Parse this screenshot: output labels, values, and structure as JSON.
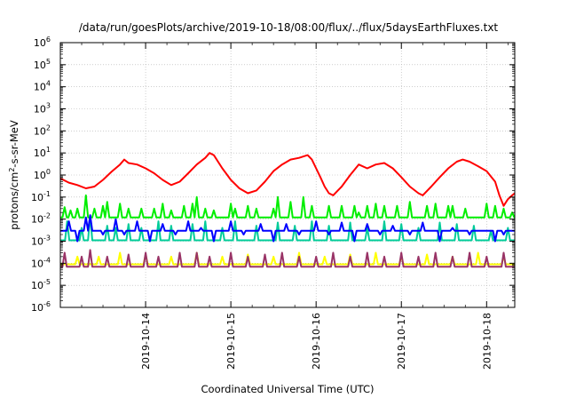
{
  "chart_data": {
    "type": "line",
    "title": "/data/run/goesPlots/archive/2019-10-18/08:00/flux/../flux/5daysEarthFluxes.txt",
    "xlabel": "Coordinated Universal Time (UTC)",
    "ylabel": "protons/cm²-s-sr-MeV",
    "x_tick_labels": [
      "2019-10-14",
      "2019-10-15",
      "2019-10-16",
      "2019-10-17",
      "2019-10-18"
    ],
    "x_tick_days": [
      1,
      2,
      3,
      4,
      5
    ],
    "x_range_days": [
      0,
      5.33
    ],
    "y_scale": "log",
    "ylim": [
      1e-06,
      1000000.0
    ],
    "y_tick_exponents": [
      -6,
      -5,
      -4,
      -3,
      -2,
      -1,
      0,
      1,
      2,
      3,
      4,
      5,
      6
    ],
    "grid": true,
    "legend": "none",
    "series": [
      {
        "color": "#ff0000",
        "points": [
          [
            0,
            0.7
          ],
          [
            0.1,
            0.45
          ],
          [
            0.2,
            0.35
          ],
          [
            0.3,
            0.25
          ],
          [
            0.4,
            0.3
          ],
          [
            0.5,
            0.6
          ],
          [
            0.6,
            1.4
          ],
          [
            0.7,
            3.0
          ],
          [
            0.75,
            5.0
          ],
          [
            0.8,
            3.5
          ],
          [
            0.9,
            3.0
          ],
          [
            1.0,
            2.0
          ],
          [
            1.1,
            1.2
          ],
          [
            1.2,
            0.6
          ],
          [
            1.3,
            0.35
          ],
          [
            1.4,
            0.5
          ],
          [
            1.5,
            1.2
          ],
          [
            1.6,
            3.0
          ],
          [
            1.7,
            6.0
          ],
          [
            1.75,
            10.0
          ],
          [
            1.8,
            8.0
          ],
          [
            1.9,
            2.0
          ],
          [
            2.0,
            0.6
          ],
          [
            2.1,
            0.25
          ],
          [
            2.2,
            0.15
          ],
          [
            2.3,
            0.2
          ],
          [
            2.4,
            0.5
          ],
          [
            2.5,
            1.5
          ],
          [
            2.6,
            3.0
          ],
          [
            2.7,
            5.0
          ],
          [
            2.8,
            6.0
          ],
          [
            2.9,
            8.0
          ],
          [
            2.95,
            5.0
          ],
          [
            3.0,
            2.0
          ],
          [
            3.05,
            0.8
          ],
          [
            3.1,
            0.3
          ],
          [
            3.15,
            0.15
          ],
          [
            3.2,
            0.12
          ],
          [
            3.3,
            0.3
          ],
          [
            3.4,
            1.0
          ],
          [
            3.5,
            3.0
          ],
          [
            3.6,
            2.0
          ],
          [
            3.7,
            3.0
          ],
          [
            3.8,
            3.5
          ],
          [
            3.9,
            2.0
          ],
          [
            4.0,
            0.8
          ],
          [
            4.1,
            0.3
          ],
          [
            4.2,
            0.15
          ],
          [
            4.25,
            0.12
          ],
          [
            4.35,
            0.3
          ],
          [
            4.45,
            0.8
          ],
          [
            4.55,
            2.0
          ],
          [
            4.65,
            4.0
          ],
          [
            4.72,
            5.0
          ],
          [
            4.8,
            4.0
          ],
          [
            4.9,
            2.5
          ],
          [
            5.0,
            1.5
          ],
          [
            5.1,
            0.5
          ],
          [
            5.15,
            0.12
          ],
          [
            5.2,
            0.04
          ],
          [
            5.25,
            0.08
          ],
          [
            5.3,
            0.12
          ],
          [
            5.33,
            0.15
          ]
        ]
      },
      {
        "color": "#00ee00",
        "baseline": 0.012,
        "spikes": [
          [
            0.05,
            0.035
          ],
          [
            0.12,
            0.025
          ],
          [
            0.2,
            0.03
          ],
          [
            0.3,
            0.12
          ],
          [
            0.4,
            0.03
          ],
          [
            0.5,
            0.04
          ],
          [
            0.55,
            0.06
          ],
          [
            0.7,
            0.05
          ],
          [
            0.8,
            0.03
          ],
          [
            0.95,
            0.03
          ],
          [
            1.1,
            0.03
          ],
          [
            1.2,
            0.05
          ],
          [
            1.3,
            0.025
          ],
          [
            1.45,
            0.04
          ],
          [
            1.55,
            0.05
          ],
          [
            1.6,
            0.1
          ],
          [
            1.7,
            0.03
          ],
          [
            1.8,
            0.025
          ],
          [
            2.0,
            0.05
          ],
          [
            2.05,
            0.03
          ],
          [
            2.2,
            0.04
          ],
          [
            2.3,
            0.03
          ],
          [
            2.5,
            0.03
          ],
          [
            2.55,
            0.1
          ],
          [
            2.7,
            0.06
          ],
          [
            2.85,
            0.1
          ],
          [
            2.95,
            0.04
          ],
          [
            3.15,
            0.04
          ],
          [
            3.3,
            0.04
          ],
          [
            3.45,
            0.04
          ],
          [
            3.5,
            0.02
          ],
          [
            3.6,
            0.04
          ],
          [
            3.7,
            0.05
          ],
          [
            3.8,
            0.04
          ],
          [
            3.95,
            0.04
          ],
          [
            4.1,
            0.06
          ],
          [
            4.3,
            0.04
          ],
          [
            4.4,
            0.05
          ],
          [
            4.55,
            0.04
          ],
          [
            4.6,
            0.04
          ],
          [
            4.75,
            0.03
          ],
          [
            5.0,
            0.05
          ],
          [
            5.1,
            0.04
          ],
          [
            5.2,
            0.03
          ],
          [
            5.3,
            0.02
          ]
        ]
      },
      {
        "color": "#00cc99",
        "baseline": 0.0011,
        "spikes": [
          [
            0.08,
            0.008
          ],
          [
            0.25,
            0.004
          ],
          [
            0.35,
            0.015
          ],
          [
            0.55,
            0.005
          ],
          [
            0.65,
            0.004
          ],
          [
            0.8,
            0.006
          ],
          [
            0.95,
            0.004
          ],
          [
            1.15,
            0.008
          ],
          [
            1.3,
            0.005
          ],
          [
            1.55,
            0.006
          ],
          [
            1.7,
            0.008
          ],
          [
            1.9,
            0.004
          ],
          [
            2.05,
            0.008
          ],
          [
            2.3,
            0.005
          ],
          [
            2.55,
            0.007
          ],
          [
            2.75,
            0.005
          ],
          [
            2.95,
            0.008
          ],
          [
            3.15,
            0.005
          ],
          [
            3.4,
            0.007
          ],
          [
            3.6,
            0.004
          ],
          [
            3.8,
            0.008
          ],
          [
            4.0,
            0.006
          ],
          [
            4.2,
            0.004
          ],
          [
            4.45,
            0.007
          ],
          [
            4.65,
            0.006
          ],
          [
            4.85,
            0.005
          ],
          [
            5.05,
            0.003
          ],
          [
            5.25,
            0.004
          ]
        ]
      },
      {
        "color": "#0000ff",
        "baseline": 0.003,
        "spikes": [
          [
            0.1,
            0.008
          ],
          [
            0.2,
            0.001
          ],
          [
            0.3,
            0.012
          ],
          [
            0.35,
            0.015
          ],
          [
            0.5,
            0.002
          ],
          [
            0.65,
            0.01
          ],
          [
            0.75,
            0.002
          ],
          [
            0.9,
            0.008
          ],
          [
            1.05,
            0.001
          ],
          [
            1.2,
            0.006
          ],
          [
            1.35,
            0.002
          ],
          [
            1.5,
            0.008
          ],
          [
            1.65,
            0.004
          ],
          [
            1.8,
            0.001
          ],
          [
            2.0,
            0.008
          ],
          [
            2.15,
            0.002
          ],
          [
            2.35,
            0.006
          ],
          [
            2.5,
            0.001
          ],
          [
            2.65,
            0.006
          ],
          [
            2.8,
            0.002
          ],
          [
            3.0,
            0.008
          ],
          [
            3.15,
            0.002
          ],
          [
            3.3,
            0.007
          ],
          [
            3.45,
            0.001
          ],
          [
            3.6,
            0.006
          ],
          [
            3.75,
            0.002
          ],
          [
            3.9,
            0.005
          ],
          [
            4.1,
            0.002
          ],
          [
            4.25,
            0.007
          ],
          [
            4.45,
            0.001
          ],
          [
            4.6,
            0.004
          ],
          [
            4.8,
            0.002
          ],
          [
            5.0,
            0.003
          ],
          [
            5.1,
            0.001
          ],
          [
            5.2,
            0.002
          ]
        ]
      },
      {
        "color": "#ffff00",
        "baseline": 9e-05,
        "spikes": [
          [
            0.2,
            0.0002
          ],
          [
            0.45,
            0.0002
          ],
          [
            0.7,
            0.0003
          ],
          [
            1.0,
            0.00025
          ],
          [
            1.3,
            0.0002
          ],
          [
            1.6,
            0.0003
          ],
          [
            1.9,
            0.0002
          ],
          [
            2.2,
            0.00025
          ],
          [
            2.5,
            0.0002
          ],
          [
            2.8,
            0.0003
          ],
          [
            3.1,
            0.0002
          ],
          [
            3.4,
            0.00025
          ],
          [
            3.7,
            0.0003
          ],
          [
            4.0,
            0.0002
          ],
          [
            4.3,
            0.00025
          ],
          [
            4.6,
            0.0002
          ],
          [
            4.9,
            0.0003
          ],
          [
            5.2,
            0.0002
          ]
        ]
      },
      {
        "color": "#993366",
        "baseline": 7e-05,
        "spikes": [
          [
            0.05,
            0.0003
          ],
          [
            0.25,
            0.0002
          ],
          [
            0.35,
            0.0004
          ],
          [
            0.55,
            0.0002
          ],
          [
            0.8,
            0.00025
          ],
          [
            1.0,
            0.0003
          ],
          [
            1.15,
            0.0002
          ],
          [
            1.4,
            0.0003
          ],
          [
            1.6,
            0.0003
          ],
          [
            1.75,
            0.0002
          ],
          [
            2.0,
            0.0003
          ],
          [
            2.2,
            0.0002
          ],
          [
            2.4,
            0.00025
          ],
          [
            2.6,
            0.0003
          ],
          [
            2.8,
            0.0002
          ],
          [
            3.0,
            0.0002
          ],
          [
            3.2,
            0.0003
          ],
          [
            3.4,
            0.0002
          ],
          [
            3.6,
            0.0003
          ],
          [
            3.8,
            0.0002
          ],
          [
            4.0,
            0.0003
          ],
          [
            4.2,
            0.0002
          ],
          [
            4.4,
            0.0003
          ],
          [
            4.6,
            0.0002
          ],
          [
            4.8,
            0.0003
          ],
          [
            5.0,
            0.0002
          ],
          [
            5.2,
            0.0003
          ]
        ]
      }
    ]
  }
}
